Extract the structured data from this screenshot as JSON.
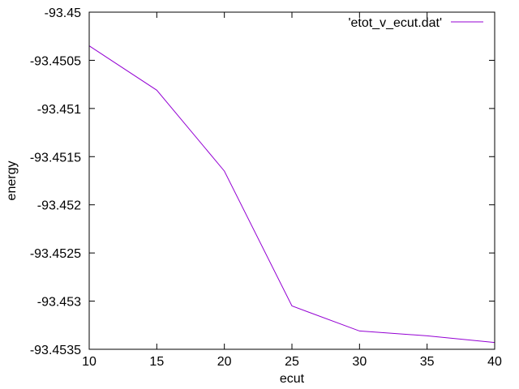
{
  "chart_data": {
    "type": "line",
    "title": "",
    "xlabel": "ecut",
    "ylabel": "energy",
    "xlim": [
      10,
      40
    ],
    "ylim": [
      -93.4535,
      -93.45
    ],
    "xticks": [
      10,
      15,
      20,
      25,
      30,
      35,
      40
    ],
    "xtick_labels": [
      "10",
      "15",
      "20",
      "25",
      "30",
      "35",
      "40"
    ],
    "yticks": [
      -93.45,
      -93.4505,
      -93.451,
      -93.4515,
      -93.452,
      -93.4525,
      -93.453,
      -93.4535
    ],
    "ytick_labels": [
      "-93.45",
      "-93.4505",
      "-93.451",
      "-93.4515",
      "-93.452",
      "-93.4525",
      "-93.453",
      "-93.4535"
    ],
    "grid": false,
    "legend_position": "top-right",
    "series": [
      {
        "name": "'etot_v_ecut.dat'",
        "color": "#9400d3",
        "x": [
          10,
          15,
          20,
          25,
          30,
          35,
          40
        ],
        "y": [
          -93.45035,
          -93.45081,
          -93.45165,
          -93.45305,
          -93.45331,
          -93.45336,
          -93.45343
        ]
      }
    ]
  }
}
